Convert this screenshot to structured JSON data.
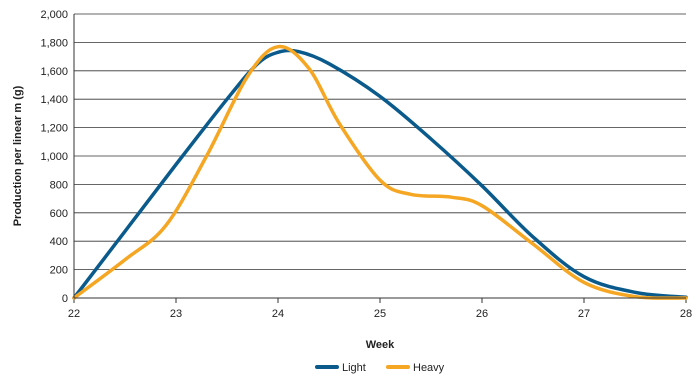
{
  "chart_data": {
    "type": "line",
    "title": "",
    "xlabel": "Week",
    "ylabel": "Production per linear m (g)",
    "xlim": [
      22,
      28
    ],
    "ylim": [
      0,
      2000
    ],
    "x_ticks": [
      22,
      23,
      24,
      25,
      26,
      27,
      28
    ],
    "y_ticks": [
      0,
      200,
      400,
      600,
      800,
      1000,
      1200,
      1400,
      1600,
      1800,
      2000
    ],
    "y_tick_labels": [
      "0",
      "200",
      "400",
      "600",
      "800",
      "1,000",
      "1,200",
      "1,400",
      "1,600",
      "1,800",
      "2,000"
    ],
    "grid": "horizontal",
    "legend_position": "bottom",
    "series": [
      {
        "name": "Light",
        "color": "#0a5a8c",
        "points": [
          [
            22,
            0
          ],
          [
            22.5,
            470
          ],
          [
            23,
            940
          ],
          [
            23.5,
            1400
          ],
          [
            23.8,
            1650
          ],
          [
            24,
            1730
          ],
          [
            24.2,
            1735
          ],
          [
            24.5,
            1650
          ],
          [
            25,
            1420
          ],
          [
            25.5,
            1120
          ],
          [
            26,
            790
          ],
          [
            26.5,
            430
          ],
          [
            27,
            150
          ],
          [
            27.5,
            40
          ],
          [
            28,
            5
          ]
        ]
      },
      {
        "name": "Heavy",
        "color": "#f5a623",
        "points": [
          [
            22,
            0
          ],
          [
            22.5,
            270
          ],
          [
            22.9,
            510
          ],
          [
            23.3,
            1000
          ],
          [
            23.7,
            1560
          ],
          [
            24,
            1770
          ],
          [
            24.3,
            1620
          ],
          [
            24.6,
            1230
          ],
          [
            25,
            830
          ],
          [
            25.3,
            730
          ],
          [
            25.7,
            710
          ],
          [
            26,
            650
          ],
          [
            26.5,
            380
          ],
          [
            27,
            110
          ],
          [
            27.5,
            10
          ],
          [
            28,
            0
          ]
        ]
      }
    ]
  }
}
